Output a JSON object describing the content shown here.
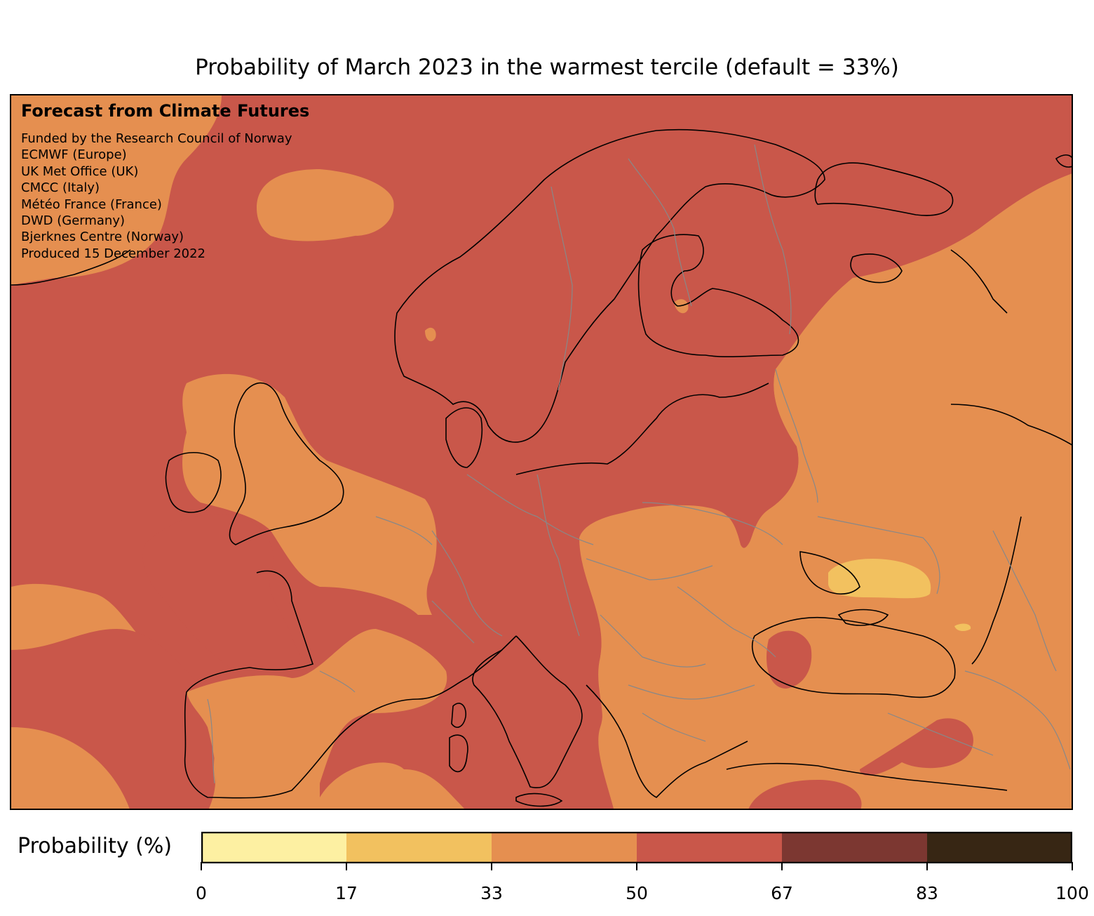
{
  "title": "Probability of March 2023 in the warmest tercile (default = 33%)",
  "credits": {
    "organization": "Forecast from Climate Futures",
    "lines": [
      "Funded by the Research Council of Norway",
      "ECMWF (Europe)",
      "UK Met Office (UK)",
      "CMCC (Italy)",
      "Météo France (France)",
      "DWD (Germany)",
      "Bjerknes Centre (Norway)",
      "Produced 15 December 2022"
    ]
  },
  "colorbar": {
    "label": "Probability (%)",
    "bins": [
      {
        "from": 0,
        "to": 17,
        "color": "#fdf0a2"
      },
      {
        "from": 17,
        "to": 33,
        "color": "#f2c15f"
      },
      {
        "from": 33,
        "to": 50,
        "color": "#e58f50"
      },
      {
        "from": 50,
        "to": 67,
        "color": "#c9574a"
      },
      {
        "from": 67,
        "to": 83,
        "color": "#7c3731"
      },
      {
        "from": 83,
        "to": 100,
        "color": "#372614"
      }
    ],
    "ticks": [
      "0",
      "17",
      "33",
      "50",
      "67",
      "83",
      "100"
    ]
  },
  "colors": {
    "coastline": "#000000",
    "borders": "#888888"
  }
}
